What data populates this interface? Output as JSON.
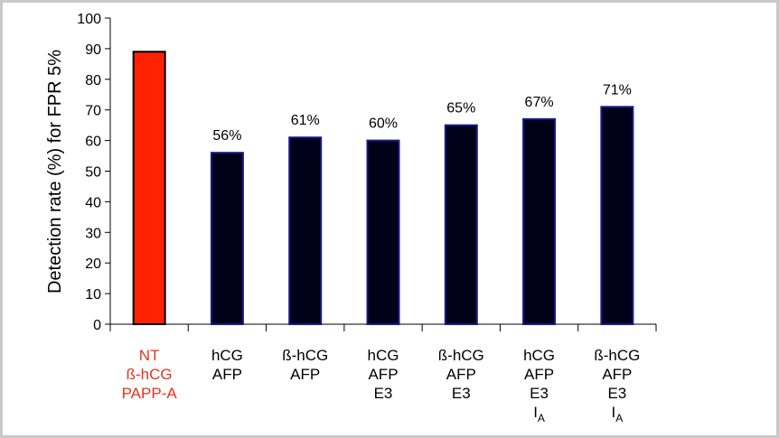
{
  "chart_data": {
    "type": "bar",
    "title": "",
    "xlabel": "",
    "ylabel": "Detection rate (%) for FPR 5%",
    "ylim": [
      0,
      100
    ],
    "yticks": [
      0,
      10,
      20,
      30,
      40,
      50,
      60,
      70,
      80,
      90,
      100
    ],
    "grid": false,
    "categories": [
      {
        "lines": [
          {
            "text": "NT"
          },
          {
            "text": "ß-hCG"
          },
          {
            "text": "PAPP-A"
          }
        ],
        "color": "#e8321e"
      },
      {
        "lines": [
          {
            "text": "hCG"
          },
          {
            "text": "AFP"
          }
        ],
        "color": "#000000"
      },
      {
        "lines": [
          {
            "text": "ß-hCG"
          },
          {
            "text": "AFP"
          }
        ],
        "color": "#000000"
      },
      {
        "lines": [
          {
            "text": "hCG"
          },
          {
            "text": "AFP"
          },
          {
            "text": "E3"
          }
        ],
        "color": "#000000"
      },
      {
        "lines": [
          {
            "text": "ß-hCG"
          },
          {
            "text": "AFP"
          },
          {
            "text": "E3"
          }
        ],
        "color": "#000000"
      },
      {
        "lines": [
          {
            "text": "hCG"
          },
          {
            "text": "AFP"
          },
          {
            "text": "E3"
          },
          {
            "text": "I",
            "sub": "A"
          }
        ],
        "color": "#000000"
      },
      {
        "lines": [
          {
            "text": "ß-hCG"
          },
          {
            "text": "AFP"
          },
          {
            "text": "E3"
          },
          {
            "text": "I",
            "sub": "A"
          }
        ],
        "color": "#000000"
      }
    ],
    "values": [
      89,
      56,
      61,
      60,
      65,
      67,
      71
    ],
    "data_labels": [
      "",
      "56%",
      "61%",
      "60%",
      "65%",
      "67%",
      "71%"
    ],
    "bar_fill": [
      "#ff2200",
      "#000019",
      "#000019",
      "#000019",
      "#000019",
      "#000019",
      "#000019"
    ],
    "bar_stroke": [
      "#000000",
      "#1a1a8c",
      "#1a1a8c",
      "#1a1a8c",
      "#1a1a8c",
      "#1a1a8c",
      "#1a1a8c"
    ]
  }
}
